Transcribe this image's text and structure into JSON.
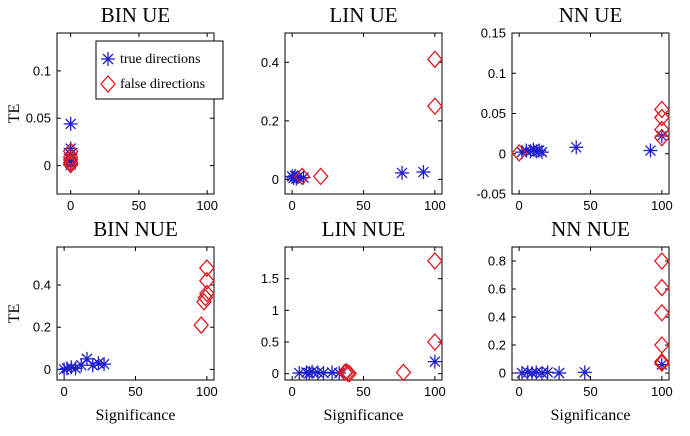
{
  "chart_data": [
    {
      "type": "scatter",
      "title": "BIN UE",
      "xlabel": "",
      "ylabel": "TE",
      "xlim": [
        -10,
        105
      ],
      "ylim": [
        -0.03,
        0.14
      ],
      "xticks": [
        0,
        50,
        100
      ],
      "yticks": [
        0,
        0.05,
        0.1
      ],
      "yticklabels": [
        "0",
        "0.05",
        "0.1"
      ],
      "legend": {
        "placement": "top-right",
        "entries": [
          "true directions",
          "false directions"
        ]
      },
      "series": [
        {
          "name": "true directions",
          "marker": "asterisk",
          "color": "#1f1fcc",
          "x": [
            0,
            0,
            0,
            0,
            0,
            0
          ],
          "y": [
            0.044,
            0.018,
            0.012,
            0.006,
            0.003,
            0.001
          ]
        },
        {
          "name": "false directions",
          "marker": "diamond",
          "color": "#e0191f",
          "x": [
            0,
            0,
            0,
            0,
            0
          ],
          "y": [
            0.015,
            0.009,
            0.006,
            0.003,
            0.001
          ]
        }
      ]
    },
    {
      "type": "scatter",
      "title": "LIN UE",
      "xlabel": "",
      "ylabel": "",
      "xlim": [
        -5,
        105
      ],
      "ylim": [
        -0.05,
        0.5
      ],
      "xticks": [
        0,
        50,
        100
      ],
      "yticks": [
        0,
        0.2,
        0.4
      ],
      "yticklabels": [
        "0",
        "0.2",
        "0.4"
      ],
      "series": [
        {
          "name": "true directions",
          "marker": "asterisk",
          "color": "#1f1fcc",
          "x": [
            0,
            1,
            2,
            3,
            4,
            8,
            77,
            92
          ],
          "y": [
            0.01,
            0.005,
            0.012,
            0.003,
            0.008,
            0.006,
            0.022,
            0.025
          ]
        },
        {
          "name": "false directions",
          "marker": "diamond",
          "color": "#e0191f",
          "x": [
            7,
            20,
            100,
            100
          ],
          "y": [
            0.01,
            0.01,
            0.25,
            0.41
          ]
        }
      ]
    },
    {
      "type": "scatter",
      "title": "NN UE",
      "xlabel": "",
      "ylabel": "",
      "xlim": [
        -5,
        105
      ],
      "ylim": [
        -0.05,
        0.15
      ],
      "xticks": [
        0,
        50,
        100
      ],
      "yticks": [
        -0.05,
        0,
        0.05,
        0.1,
        0.15
      ],
      "yticklabels": [
        "-0.05",
        "0",
        "0.05",
        "0.1",
        "0.15"
      ],
      "series": [
        {
          "name": "true directions",
          "marker": "asterisk",
          "color": "#1f1fcc",
          "x": [
            2,
            5,
            8,
            10,
            12,
            14,
            16,
            40,
            92,
            100
          ],
          "y": [
            0.002,
            0.004,
            0.003,
            0.005,
            0.003,
            0.004,
            0.002,
            0.008,
            0.004,
            0.022
          ]
        },
        {
          "name": "false directions",
          "marker": "diamond",
          "color": "#e0191f",
          "x": [
            0,
            100,
            100,
            100,
            100
          ],
          "y": [
            0.001,
            0.055,
            0.045,
            0.03,
            0.02
          ]
        }
      ]
    },
    {
      "type": "scatter",
      "title": "BIN NUE",
      "xlabel": "Significance",
      "ylabel": "TE",
      "xlim": [
        -5,
        105
      ],
      "ylim": [
        -0.05,
        0.58
      ],
      "xticks": [
        0,
        50,
        100
      ],
      "yticks": [
        0,
        0.2,
        0.4
      ],
      "yticklabels": [
        "0",
        "0.2",
        "0.4"
      ],
      "series": [
        {
          "name": "true directions",
          "marker": "asterisk",
          "color": "#1f1fcc",
          "x": [
            0,
            2,
            5,
            8,
            12,
            16,
            20,
            24,
            28
          ],
          "y": [
            0.0,
            0.005,
            0.01,
            0.005,
            0.02,
            0.05,
            0.02,
            0.03,
            0.025
          ]
        },
        {
          "name": "false directions",
          "marker": "diamond",
          "color": "#e0191f",
          "x": [
            96,
            98,
            99,
            100,
            100,
            100
          ],
          "y": [
            0.21,
            0.32,
            0.34,
            0.36,
            0.42,
            0.48
          ]
        }
      ]
    },
    {
      "type": "scatter",
      "title": "LIN NUE",
      "xlabel": "Significance",
      "ylabel": "",
      "xlim": [
        -5,
        105
      ],
      "ylim": [
        -0.1,
        2.0
      ],
      "xticks": [
        0,
        50,
        100
      ],
      "yticks": [
        0,
        0.5,
        1,
        1.5
      ],
      "yticklabels": [
        "0",
        "0.5",
        "1",
        "1.5"
      ],
      "series": [
        {
          "name": "true directions",
          "marker": "asterisk",
          "color": "#1f1fcc",
          "x": [
            5,
            10,
            12,
            14,
            18,
            22,
            28,
            33,
            100
          ],
          "y": [
            0.01,
            0.02,
            0.01,
            0.03,
            0.02,
            0.01,
            0.02,
            0.01,
            0.19
          ]
        },
        {
          "name": "false directions",
          "marker": "diamond",
          "color": "#e0191f",
          "x": [
            37,
            38,
            39,
            40,
            78,
            100,
            100
          ],
          "y": [
            0.02,
            0.03,
            0.01,
            0.0,
            0.02,
            0.5,
            1.78
          ]
        }
      ]
    },
    {
      "type": "scatter",
      "title": "NN NUE",
      "xlabel": "Significance",
      "ylabel": "",
      "xlim": [
        -5,
        105
      ],
      "ylim": [
        -0.05,
        0.9
      ],
      "xticks": [
        0,
        50,
        100
      ],
      "yticks": [
        0,
        0.2,
        0.4,
        0.6,
        0.8
      ],
      "yticklabels": [
        "0",
        "0.2",
        "0.4",
        "0.6",
        "0.8"
      ],
      "series": [
        {
          "name": "true directions",
          "marker": "asterisk",
          "color": "#1f1fcc",
          "x": [
            2,
            6,
            9,
            12,
            16,
            20,
            28,
            46,
            100
          ],
          "y": [
            0.0,
            0.005,
            0.0,
            0.005,
            0.0,
            0.005,
            0.0,
            0.005,
            0.06
          ]
        },
        {
          "name": "false directions",
          "marker": "diamond",
          "color": "#e0191f",
          "x": [
            100,
            100,
            100,
            100,
            100,
            100
          ],
          "y": [
            0.08,
            0.2,
            0.43,
            0.61,
            0.8,
            0.07
          ]
        }
      ]
    }
  ]
}
